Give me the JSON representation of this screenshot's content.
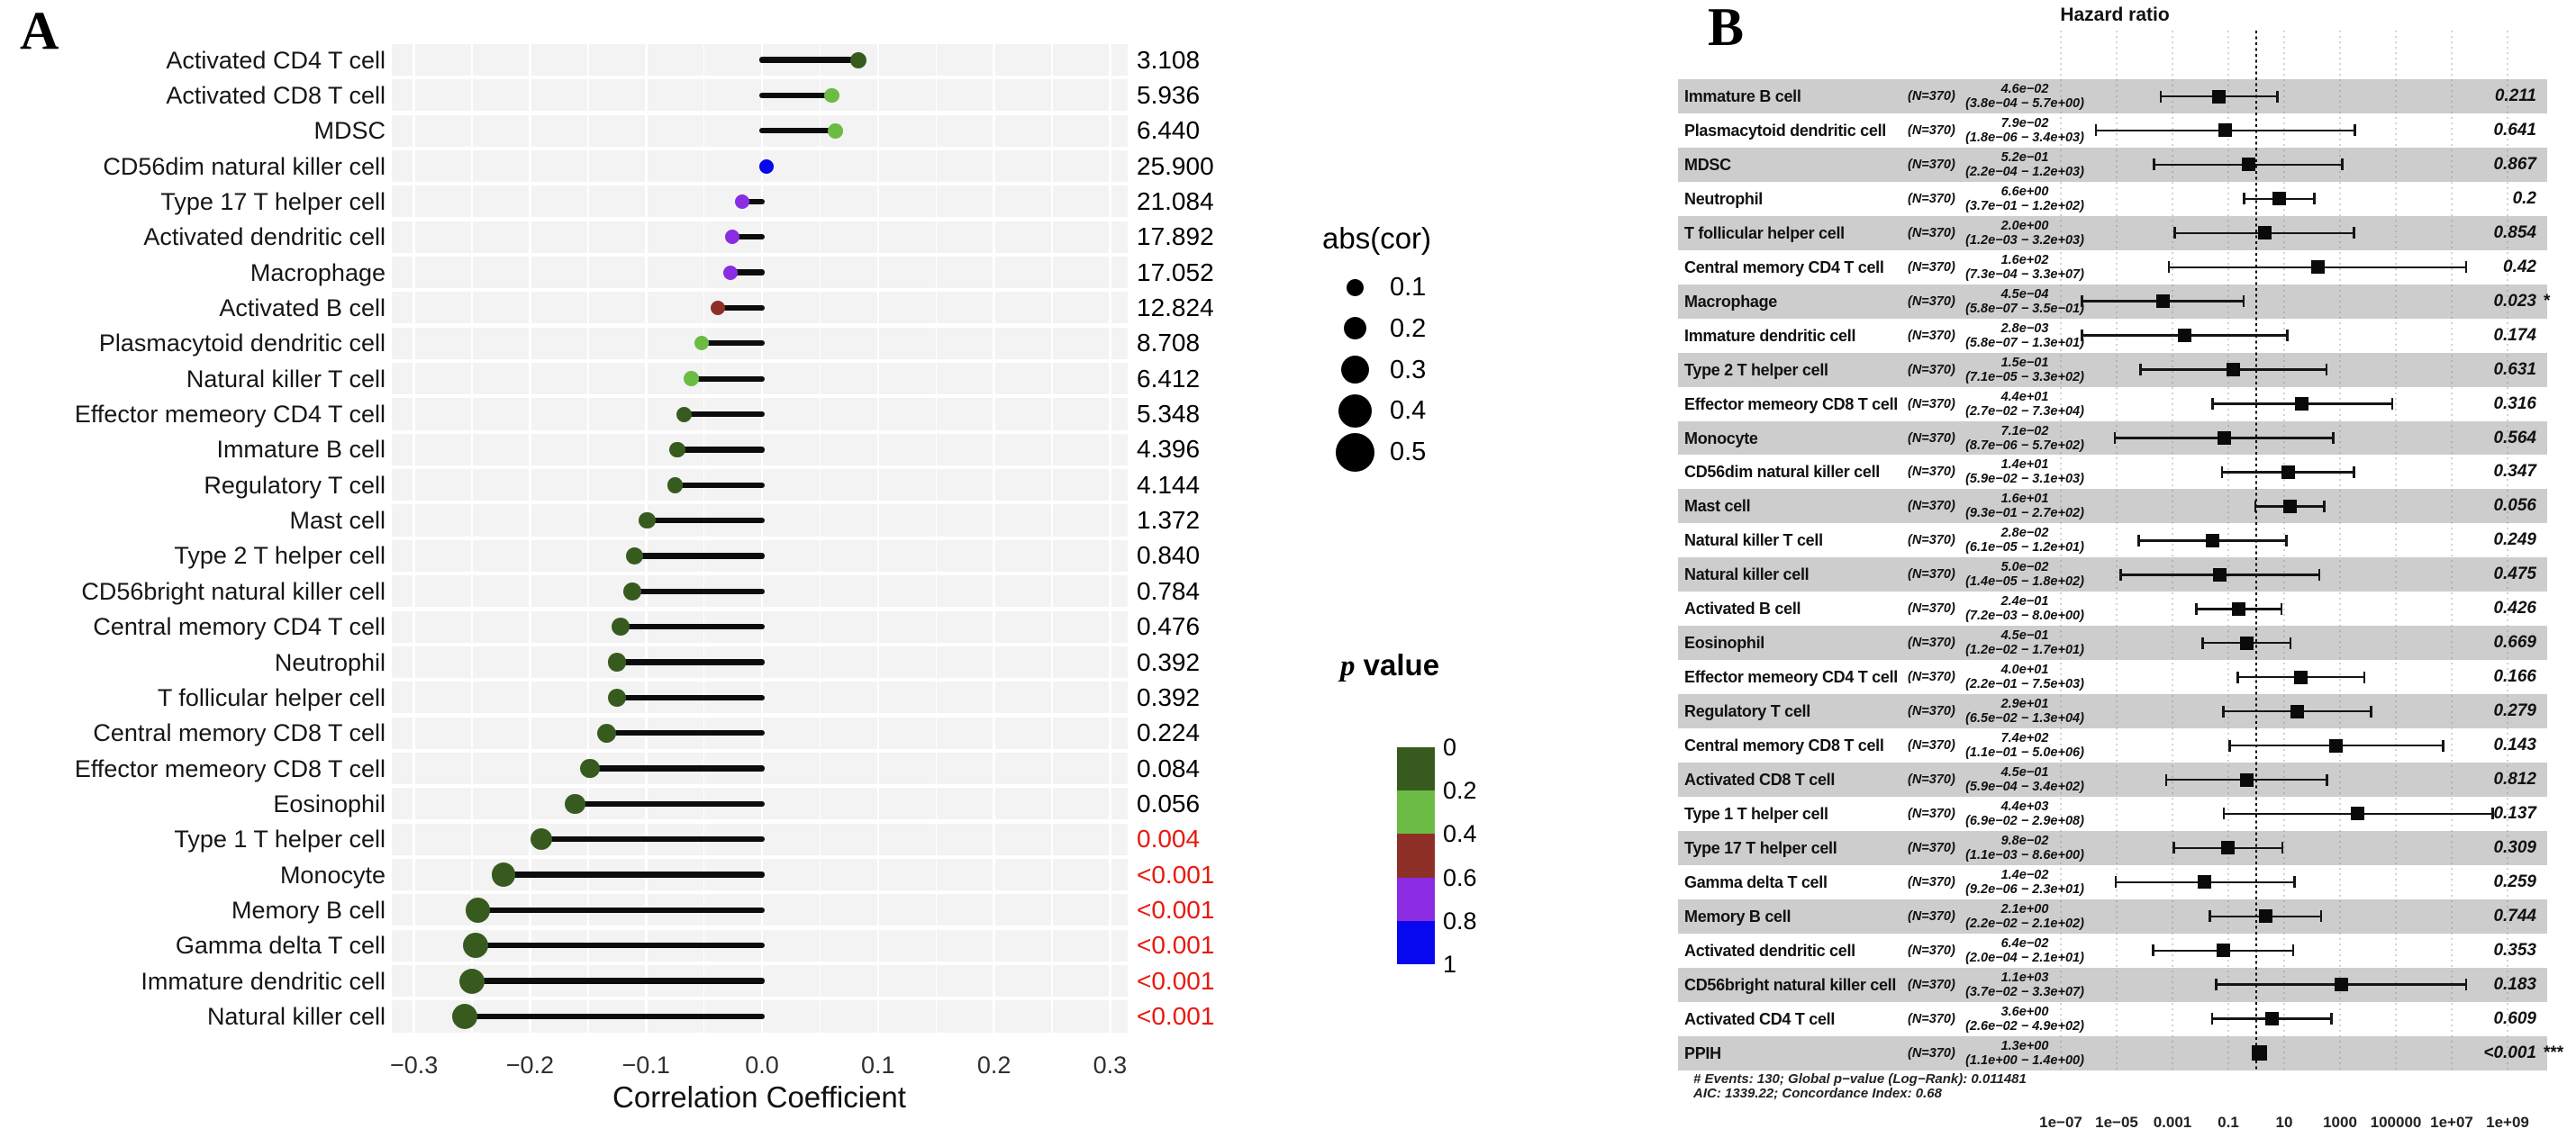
{
  "panel_letters": {
    "a": "A",
    "b": "B"
  },
  "chart_data": [
    {
      "type": "scatter",
      "subtype": "lollipop",
      "title": "",
      "xlabel": "Correlation Coefficient",
      "ylabel": "",
      "xlim": [
        -0.32,
        0.32
      ],
      "grid": true,
      "x_ticks": {
        "values": [
          -0.3,
          -0.2,
          -0.1,
          0.0,
          0.1,
          0.2,
          0.3
        ],
        "labels": [
          "−0.3",
          "−0.2",
          "−0.1",
          "0.0",
          "0.1",
          "0.2",
          "0.3"
        ]
      },
      "categories": [
        "Activated CD4 T cell",
        "Activated CD8 T cell",
        "MDSC",
        "CD56dim natural killer cell",
        "Type 17 T helper cell",
        "Activated dendritic cell",
        "Macrophage",
        "Activated B cell",
        "Plasmacytoid dendritic cell",
        "Natural killer T cell",
        "Effector memeory CD4 T cell",
        "Immature  B cell",
        "Regulatory T cell",
        "Mast cell",
        "Type 2 T helper cell",
        "CD56bright natural killer cell",
        "Central memory CD4 T cell",
        "Neutrophil",
        "T follicular helper cell",
        "Central memory CD8 T cell",
        "Effector memeory CD8 T cell",
        "Eosinophil",
        "Type 1 T helper cell",
        "Monocyte",
        "Memory B cell",
        "Gamma delta T cell",
        "Immature dendritic cell",
        "Natural killer cell"
      ],
      "values": [
        0.083,
        0.06,
        0.063,
        0.004,
        -0.017,
        -0.026,
        -0.027,
        -0.038,
        -0.052,
        -0.061,
        -0.067,
        -0.073,
        -0.075,
        -0.099,
        -0.11,
        -0.112,
        -0.122,
        -0.125,
        -0.125,
        -0.134,
        -0.148,
        -0.161,
        -0.19,
        -0.223,
        -0.245,
        -0.247,
        -0.25,
        -0.256
      ],
      "point_colors": [
        "#375b1f",
        "#6cbb44",
        "#6cbb44",
        "#0808ee",
        "#8b2be2",
        "#8b2be2",
        "#8b2be2",
        "#8e2f28",
        "#6cbb44",
        "#6cbb44",
        "#375b1f",
        "#375b1f",
        "#375b1f",
        "#375b1f",
        "#375b1f",
        "#375b1f",
        "#375b1f",
        "#375b1f",
        "#375b1f",
        "#375b1f",
        "#375b1f",
        "#375b1f",
        "#375b1f",
        "#375b1f",
        "#375b1f",
        "#375b1f",
        "#375b1f",
        "#375b1f"
      ],
      "value_labels": [
        "3.108",
        "5.936",
        "6.440",
        "25.900",
        "21.084",
        "17.892",
        "17.052",
        "12.824",
        "8.708",
        "6.412",
        "5.348",
        "4.396",
        "4.144",
        "1.372",
        "0.840",
        "0.784",
        "0.476",
        "0.392",
        "0.392",
        "0.224",
        "0.084",
        "0.056",
        "0.004",
        "<0.001",
        "<0.001",
        "<0.001",
        "<0.001",
        "<0.001"
      ],
      "value_label_red": [
        0,
        0,
        0,
        0,
        0,
        0,
        0,
        0,
        0,
        0,
        0,
        0,
        0,
        0,
        0,
        0,
        0,
        0,
        0,
        0,
        0,
        0,
        1,
        1,
        1,
        1,
        1,
        1
      ],
      "highlight_color": "#e8190f",
      "stem_color": "#0c0c0c",
      "band_color": "#f3f3f3",
      "size_legend": {
        "title": "abs(cor)",
        "labels": [
          "0.1",
          "0.2",
          "0.3",
          "0.4",
          "0.5"
        ],
        "values": [
          0.1,
          0.2,
          0.3,
          0.4,
          0.5
        ]
      },
      "color_legend": {
        "title_p": "p",
        "title_rest": " value",
        "labels": [
          "0",
          "0.2",
          "0.4",
          "0.6",
          "0.8",
          "1"
        ],
        "colors": [
          "#375b1f",
          "#6cbb44",
          "#8e2f28",
          "#8b2be2",
          "#0808ee"
        ]
      }
    },
    {
      "type": "forest",
      "title": "Hazard ratio",
      "n_label": "(N=370)",
      "reference_line": 1,
      "band_color": "#cdcdcd",
      "categories": [
        "Immature  B cell",
        "Plasmacytoid dendritic cell",
        "MDSC",
        "Neutrophil",
        "T follicular helper cell",
        "Central memory CD4 T cell",
        "Macrophage",
        "Immature dendritic cell",
        "Type 2 T helper cell",
        "Effector memeory CD8 T cell",
        "Monocyte",
        "CD56dim natural killer cell",
        "Mast cell",
        "Natural killer T cell",
        "Natural killer cell",
        "Activated B cell",
        "Eosinophil",
        "Effector memeory CD4 T cell",
        "Regulatory T cell",
        "Central memory CD8 T cell",
        "Activated CD8 T cell",
        "Type 1 T helper cell",
        "Type 17 T helper cell",
        "Gamma delta T cell",
        "Memory B cell",
        "Activated dendritic cell",
        "CD56bright natural killer cell",
        "Activated CD4 T cell",
        "PPIH"
      ],
      "hr": [
        0.046,
        0.079,
        0.52,
        6.6,
        2.0,
        160,
        0.00045,
        0.0028,
        0.15,
        44,
        0.071,
        14,
        16,
        0.028,
        0.05,
        0.24,
        0.45,
        40,
        29,
        740,
        0.45,
        4400,
        0.098,
        0.014,
        2.1,
        0.064,
        1100,
        3.6,
        1.3
      ],
      "ci_low": [
        0.00038,
        1.8e-06,
        0.00022,
        0.37,
        0.0012,
        0.00073,
        5.8e-07,
        5.8e-07,
        7.1e-05,
        0.027,
        8.7e-06,
        0.059,
        0.93,
        6.1e-05,
        1.4e-05,
        0.0072,
        0.012,
        0.22,
        0.065,
        0.11,
        0.00059,
        0.069,
        0.0011,
        9.2e-06,
        0.022,
        0.0002,
        0.037,
        0.026,
        1.1
      ],
      "ci_high": [
        5.7,
        3400,
        1200,
        120,
        3200,
        33000000.0,
        0.35,
        13,
        330,
        73000,
        570,
        3100,
        270,
        12,
        180,
        8.0,
        17,
        7500,
        13000,
        5000000.0,
        340,
        290000000.0,
        8.6,
        23,
        210,
        21,
        33000000.0,
        490,
        1.4
      ],
      "hr_labels": [
        "4.6e−02",
        "7.9e−02",
        "5.2e−01",
        "6.6e+00",
        "2.0e+00",
        "1.6e+02",
        "4.5e−04",
        "2.8e−03",
        "1.5e−01",
        "4.4e+01",
        "7.1e−02",
        "1.4e+01",
        "1.6e+01",
        "2.8e−02",
        "5.0e−02",
        "2.4e−01",
        "4.5e−01",
        "4.0e+01",
        "2.9e+01",
        "7.4e+02",
        "4.5e−01",
        "4.4e+03",
        "9.8e−02",
        "1.4e−02",
        "2.1e+00",
        "6.4e−02",
        "1.1e+03",
        "3.6e+00",
        "1.3e+00"
      ],
      "ci_labels": [
        "(3.8e−04 − 5.7e+00)",
        "(1.8e−06 − 3.4e+03)",
        "(2.2e−04 − 1.2e+03)",
        "(3.7e−01 − 1.2e+02)",
        "(1.2e−03 − 3.2e+03)",
        "(7.3e−04 − 3.3e+07)",
        "(5.8e−07 − 3.5e−01)",
        "(5.8e−07 − 1.3e+01)",
        "(7.1e−05 − 3.3e+02)",
        "(2.7e−02 − 7.3e+04)",
        "(8.7e−06 − 5.7e+02)",
        "(5.9e−02 − 3.1e+03)",
        "(9.3e−01 − 2.7e+02)",
        "(6.1e−05 − 1.2e+01)",
        "(1.4e−05 − 1.8e+02)",
        "(7.2e−03 − 8.0e+00)",
        "(1.2e−02 − 1.7e+01)",
        "(2.2e−01 − 7.5e+03)",
        "(6.5e−02 − 1.3e+04)",
        "(1.1e−01 − 5.0e+06)",
        "(5.9e−04 − 3.4e+02)",
        "(6.9e−02 − 2.9e+08)",
        "(1.1e−03 − 8.6e+00)",
        "(9.2e−06 − 2.3e+01)",
        "(2.2e−02 − 2.1e+02)",
        "(2.0e−04 − 2.1e+01)",
        "(3.7e−02 − 3.3e+07)",
        "(2.6e−02 − 4.9e+02)",
        "(1.1e+00 − 1.4e+00)"
      ],
      "p_labels": [
        "0.211",
        "0.641",
        "0.867",
        "0.2",
        "0.854",
        "0.42",
        "0.023",
        "0.174",
        "0.631",
        "0.316",
        "0.564",
        "0.347",
        "0.056",
        "0.249",
        "0.475",
        "0.426",
        "0.669",
        "0.166",
        "0.279",
        "0.143",
        "0.812",
        "0.137",
        "0.309",
        "0.259",
        "0.744",
        "0.353",
        "0.183",
        "0.609",
        "<0.001"
      ],
      "significance": [
        "",
        "",
        "",
        "",
        "",
        "",
        "*",
        "",
        "",
        "",
        "",
        "",
        "",
        "",
        "",
        "",
        "",
        "",
        "",
        "",
        "",
        "",
        "",
        "",
        "",
        "",
        "",
        "",
        "***"
      ],
      "x_ticks": {
        "values": [
          1e-07,
          1e-05,
          0.001,
          0.1,
          10,
          1000,
          100000,
          10000000.0,
          1000000000.0
        ],
        "labels": [
          "1e−07",
          "1e−05",
          "0.001",
          "0.1",
          "10",
          "1000",
          "100000",
          "1e+07",
          "1e+09"
        ]
      },
      "footnotes": [
        "# Events: 130; Global p−value (Log−Rank): 0.011481",
        "AIC: 1339.22; Concordance Index: 0.68"
      ]
    }
  ]
}
